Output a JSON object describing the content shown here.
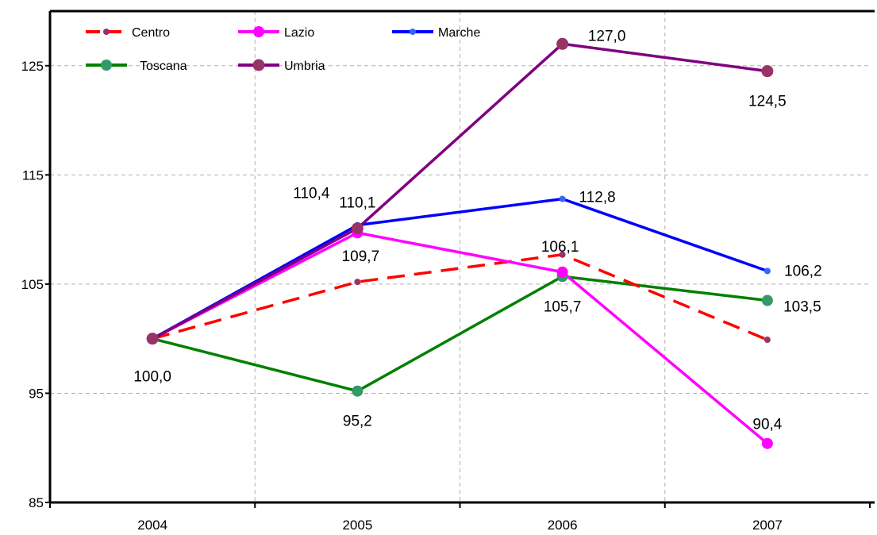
{
  "chart_data": {
    "type": "line",
    "title": "",
    "xlabel": "",
    "ylabel": "",
    "categories": [
      "2004",
      "2005",
      "2006",
      "2007"
    ],
    "ylim": [
      85,
      130
    ],
    "yticks": [
      85,
      95,
      105,
      115,
      125
    ],
    "ytick_labels": [
      "85",
      "95",
      "105",
      "115",
      "125"
    ],
    "grid": "dashed gridlines on both axes",
    "legend_position": "top-left, inside plot, two rows",
    "series": [
      {
        "name": "Centro",
        "values": [
          100.0,
          105.2,
          107.7,
          99.9
        ],
        "color": "#ff0000",
        "marker_color": "#993366",
        "line_style": "dashed"
      },
      {
        "name": "Lazio",
        "values": [
          100.0,
          109.7,
          106.1,
          90.4
        ],
        "color": "#ff00ff",
        "marker_color": "#ff00ff",
        "line_style": "solid"
      },
      {
        "name": "Marche",
        "values": [
          100.0,
          110.4,
          112.8,
          106.2
        ],
        "color": "#0000ff",
        "marker_color": "#3366ff",
        "line_style": "solid"
      },
      {
        "name": "Toscana",
        "values": [
          100.0,
          95.2,
          105.7,
          103.5
        ],
        "color": "#008000",
        "marker_color": "#339966",
        "line_style": "solid"
      },
      {
        "name": "Umbria",
        "values": [
          100.0,
          110.1,
          127.0,
          124.5
        ],
        "color": "#800080",
        "marker_color": "#993366",
        "line_style": "solid"
      }
    ],
    "data_labels": [
      {
        "text": "100,0",
        "series": "Toscana",
        "index": 0
      },
      {
        "text": "110,4",
        "series": "Marche",
        "index": 1
      },
      {
        "text": "110,1",
        "series": "Umbria",
        "index": 1
      },
      {
        "text": "109,7",
        "series": "Lazio",
        "index": 1
      },
      {
        "text": "95,2",
        "series": "Toscana",
        "index": 1
      },
      {
        "text": "127,0",
        "series": "Umbria",
        "index": 2
      },
      {
        "text": "112,8",
        "series": "Marche",
        "index": 2
      },
      {
        "text": "106,1",
        "series": "Lazio",
        "index": 2
      },
      {
        "text": "105,7",
        "series": "Toscana",
        "index": 2
      },
      {
        "text": "124,5",
        "series": "Umbria",
        "index": 3
      },
      {
        "text": "106,2",
        "series": "Marche",
        "index": 3
      },
      {
        "text": "103,5",
        "series": "Toscana",
        "index": 3
      },
      {
        "text": "90,4",
        "series": "Lazio",
        "index": 3
      }
    ]
  }
}
